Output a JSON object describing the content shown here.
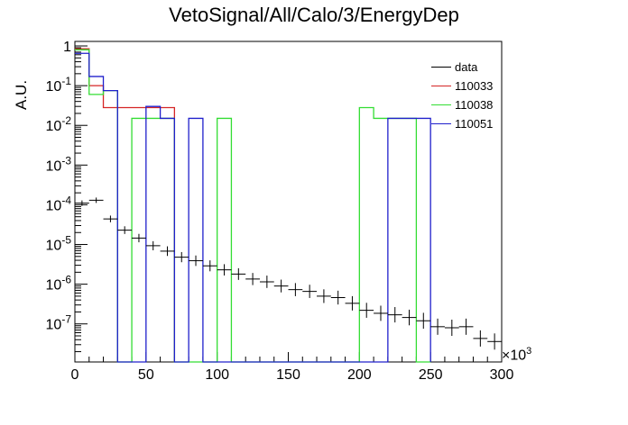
{
  "chart_data": {
    "type": "histogram",
    "title": "VetoSignal/All/Calo/3/EnergyDep",
    "ylabel": "A.U.",
    "xlabel": "",
    "x_multiplier_label": "×10",
    "x_multiplier_exponent": "3",
    "xlim": [
      0,
      300
    ],
    "ylim": [
      1.1e-08,
      1.3
    ],
    "yscale": "log",
    "x_ticks": [
      "0",
      "50",
      "100",
      "150",
      "200",
      "250",
      "300"
    ],
    "y_ticks": [
      "10",
      "10",
      "10",
      "10",
      "10",
      "10",
      "10",
      "1"
    ],
    "y_tick_exponents": [
      "-7",
      "-6",
      "-5",
      "-4",
      "-3",
      "-2",
      "-1",
      ""
    ],
    "legend_position": "top-right",
    "series": [
      {
        "name": "data",
        "color": "#000000",
        "style": "points",
        "bin_width": 10,
        "x": [
          5,
          15,
          25,
          35,
          45,
          55,
          65,
          75,
          85,
          95,
          105,
          115,
          125,
          135,
          145,
          155,
          165,
          175,
          185,
          195,
          205,
          215,
          225,
          235,
          245,
          255,
          265,
          275,
          285,
          295
        ],
        "values": [
          0.00011,
          0.00013,
          4.4e-05,
          2.3e-05,
          1.45e-05,
          9.3e-06,
          6.8e-06,
          4.8e-06,
          3.9e-06,
          2.9e-06,
          2.3e-06,
          1.8e-06,
          1.35e-06,
          1.15e-06,
          9e-07,
          7.3e-07,
          6.6e-07,
          5e-07,
          4.6e-07,
          3.3e-07,
          2.2e-07,
          1.85e-07,
          1.7e-07,
          1.45e-07,
          1.2e-07,
          8.5e-08,
          8e-08,
          8.5e-08,
          4.3e-08,
          3.6e-08
        ]
      },
      {
        "name": "110033",
        "color": "#d52525",
        "style": "step",
        "bin_width": 10,
        "x": [
          5,
          15,
          25,
          35,
          45,
          55,
          65
        ],
        "values": [
          0.85,
          0.1,
          0.028,
          0.028,
          0.028,
          0.028,
          0.028
        ]
      },
      {
        "name": "110038",
        "color": "#33dd33",
        "style": "step",
        "bin_width": 10,
        "x": [
          5,
          15,
          25,
          35,
          45,
          55,
          65,
          75,
          85,
          95,
          105,
          115,
          125,
          135,
          145,
          155,
          165,
          175,
          185,
          195,
          205,
          215,
          225,
          235,
          245
        ],
        "values": [
          0.8,
          0.06,
          0.075,
          0,
          0.015,
          0.015,
          0.015,
          0,
          0,
          0,
          0.015,
          0,
          0,
          0,
          0,
          0,
          0,
          0,
          0,
          0,
          0.028,
          0.015,
          0.015,
          0.015,
          0
        ]
      },
      {
        "name": "110051",
        "color": "#2020cc",
        "style": "step",
        "bin_width": 10,
        "x": [
          5,
          15,
          25,
          35,
          45,
          55,
          65,
          75,
          85,
          95,
          105,
          115,
          125,
          135,
          145,
          155,
          165,
          175,
          185,
          195,
          205,
          215,
          225,
          235,
          245
        ],
        "values": [
          0.65,
          0.17,
          0.075,
          0,
          0,
          0.03,
          0.015,
          0,
          0.015,
          0,
          0,
          0,
          0,
          0,
          0,
          0,
          0,
          0,
          0,
          0,
          0,
          0,
          0.015,
          0.015,
          0.015
        ]
      }
    ]
  }
}
